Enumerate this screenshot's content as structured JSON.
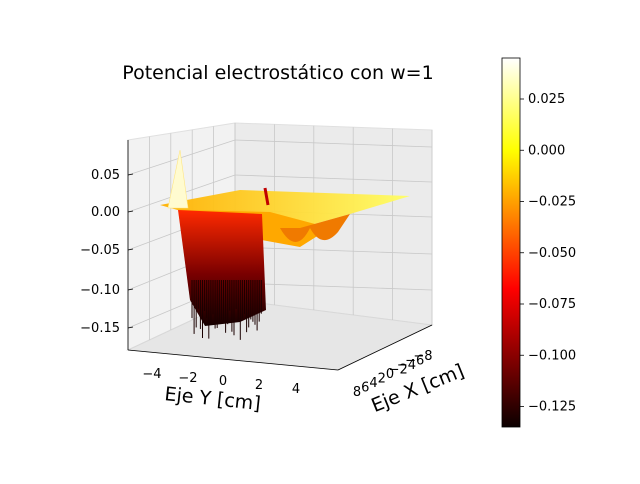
{
  "chart_data": {
    "type": "surface3d",
    "title": "Potencial electrostático con w=1",
    "xlabel": "Eje X [cm]",
    "ylabel": "Eje Y [cm]",
    "zlabel": "",
    "x_ticks": [
      "8",
      "6",
      "4",
      "2",
      "0",
      "−2",
      "−4",
      "−6",
      "−8"
    ],
    "y_ticks": [
      "−4",
      "−2",
      "0",
      "2",
      "4"
    ],
    "z_ticks": [
      "0.05",
      "0.00",
      "−0.05",
      "−0.10",
      "−0.15"
    ],
    "xlim": [
      -8,
      8
    ],
    "ylim": [
      -5,
      5
    ],
    "zlim": [
      -0.17,
      0.08
    ],
    "colormap": "hot",
    "colorbar": {
      "ticks": [
        "0.025",
        "0.000",
        "−0.025",
        "−0.050",
        "−0.075",
        "−0.100",
        "−0.125"
      ],
      "range": [
        -0.135,
        0.045
      ]
    },
    "surface_extrema": {
      "max": 0.045,
      "min": -0.135
    },
    "grid": true
  }
}
